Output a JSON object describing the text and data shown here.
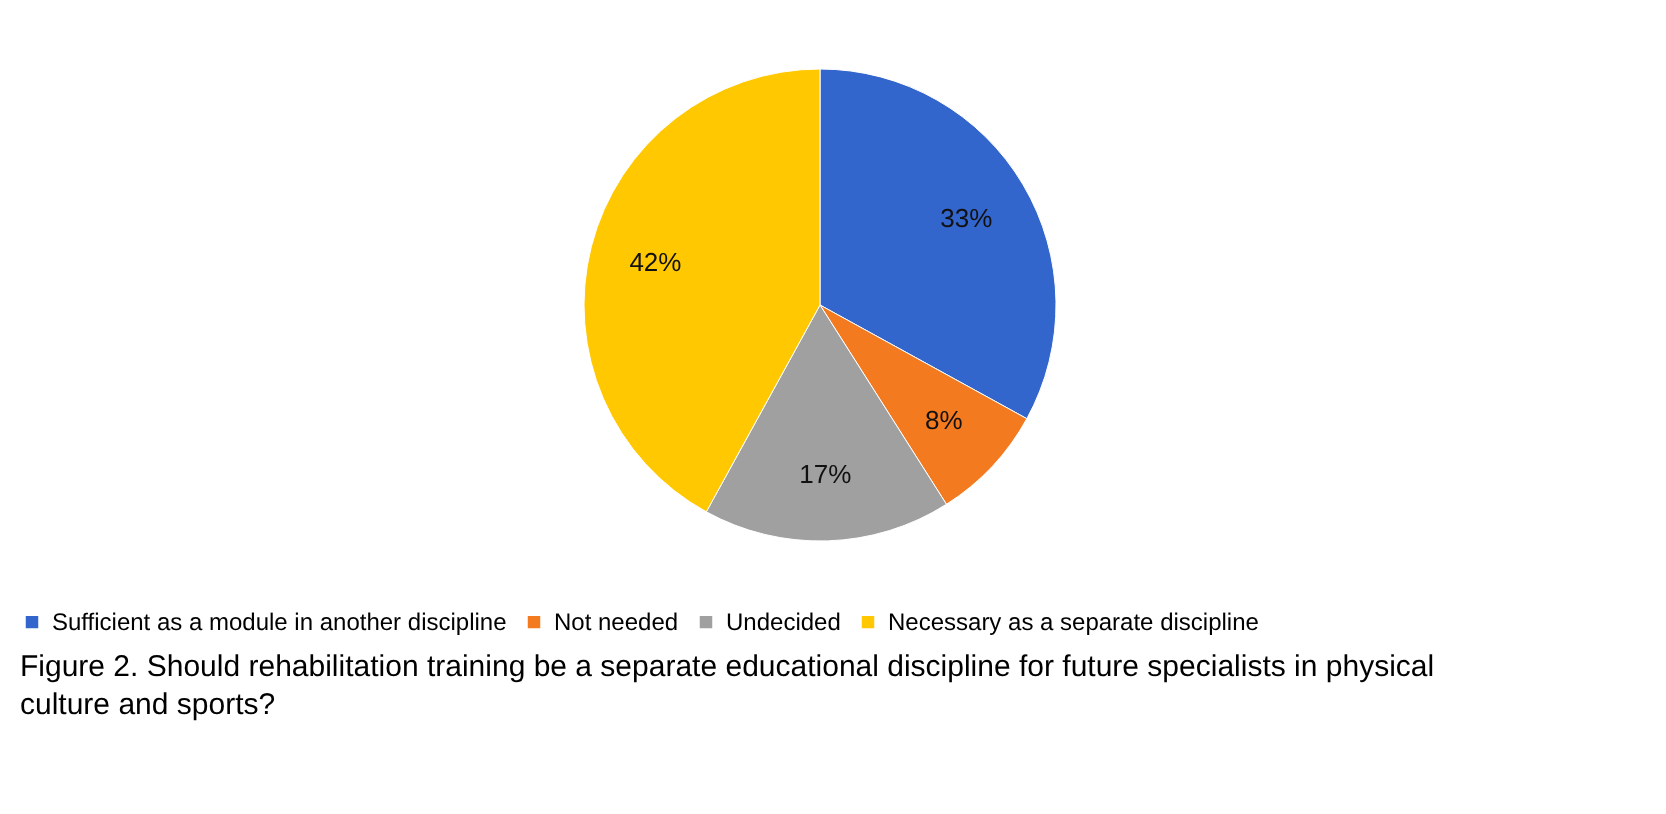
{
  "chart_data": {
    "type": "pie",
    "categories": [
      "Sufficient as a module in another discipline",
      "Not needed",
      "Undecided",
      "Necessary as a separate discipline"
    ],
    "values": [
      33,
      8,
      17,
      42
    ],
    "colors": [
      "#3366cc",
      "#f47a20",
      "#a0a0a0",
      "#ffc800"
    ],
    "value_labels": [
      "33%",
      "8%",
      "17%",
      "42%"
    ],
    "legend": "bottom",
    "annotations": [
      "Figure 2. Should rehabilitation training be a separate educational discipline for future specialists in physical culture and sports?"
    ]
  }
}
